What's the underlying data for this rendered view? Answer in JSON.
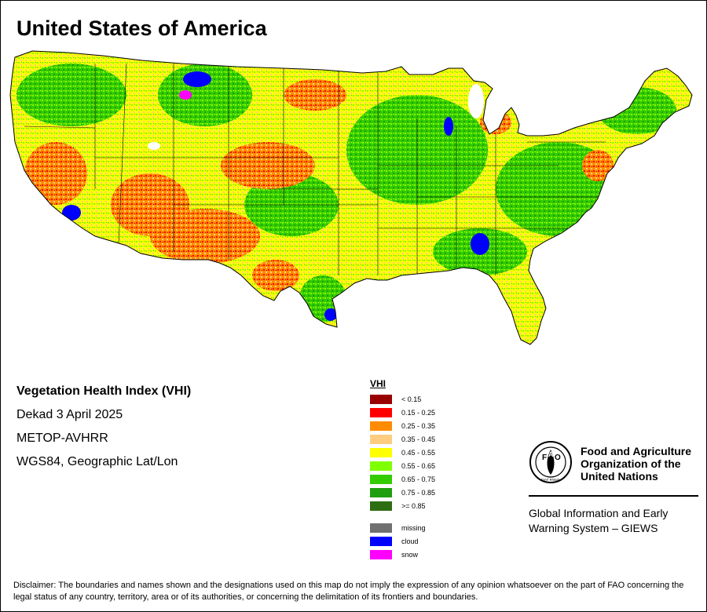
{
  "map": {
    "title": "United States of America",
    "info": [
      "Vegetation Health Index (VHI)",
      "Dekad 3 April 2025",
      "METOP-AVHRR",
      "WGS84, Geographic Lat/Lon"
    ]
  },
  "legend": {
    "title": "VHI",
    "classes": [
      {
        "label": "< 0.15",
        "color": "#990000"
      },
      {
        "label": "0.15 - 0.25",
        "color": "#ff0000"
      },
      {
        "label": "0.25 - 0.35",
        "color": "#ff8c00"
      },
      {
        "label": "0.35 - 0.45",
        "color": "#ffcc80"
      },
      {
        "label": "0.45 - 0.55",
        "color": "#ffff00"
      },
      {
        "label": "0.55 - 0.65",
        "color": "#80ff00"
      },
      {
        "label": "0.65 - 0.75",
        "color": "#33cc00"
      },
      {
        "label": "0.75 - 0.85",
        "color": "#1f9e0f"
      },
      {
        "label": ">= 0.85",
        "color": "#2d6e12"
      }
    ],
    "special": [
      {
        "label": "missing",
        "color": "#707070"
      },
      {
        "label": "cloud",
        "color": "#0000ff"
      },
      {
        "label": "snow",
        "color": "#ff00ff"
      }
    ]
  },
  "logo": {
    "emblem_text": [
      "F",
      "A",
      "O",
      "FIAT PANIS"
    ],
    "name": "Food and Agriculture Organization of the United Nations",
    "system": "Global Information and Early Warning System – GIEWS"
  },
  "disclaimer": "Disclaimer: The boundaries and names shown and the designations used on this map do not imply the expression of any opinion whatsoever on the part of FAO concerning the legal status of any country, territory, area or of its authorities, or concerning the delimitation of its frontiers and boundaries."
}
